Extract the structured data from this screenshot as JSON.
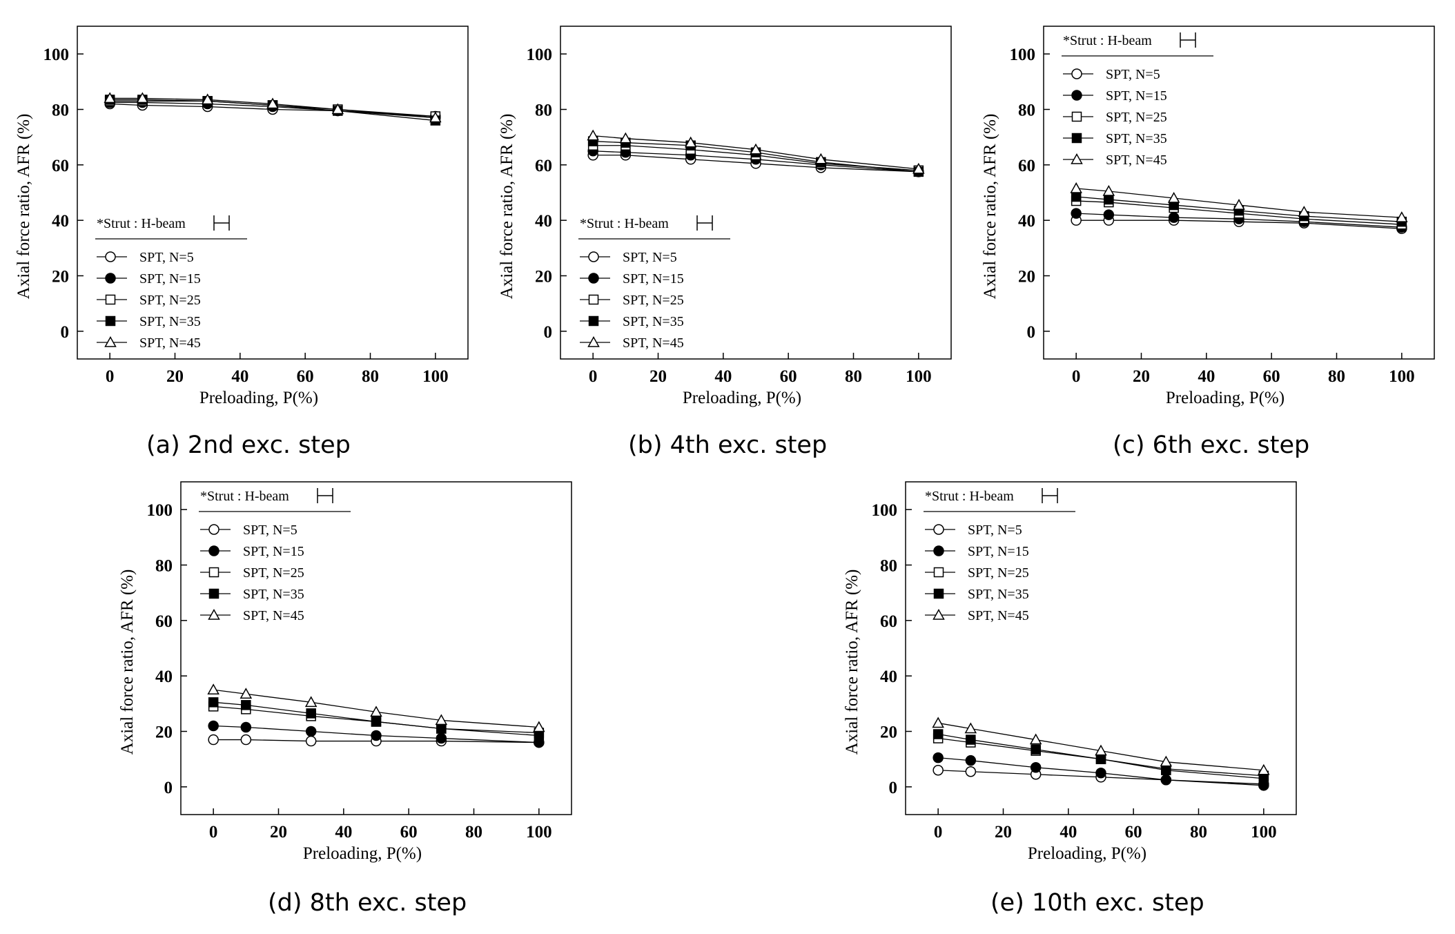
{
  "chart_data": [
    {
      "type": "line",
      "caption": "(a) 2nd exc. step",
      "xlabel": "Preloading, P(%)",
      "ylabel": "Axial force ratio, AFR  (%)",
      "xlim": [
        -10,
        110
      ],
      "ylim": [
        -10,
        110
      ],
      "xticks": [
        "0",
        "20",
        "40",
        "60",
        "80",
        "100"
      ],
      "yticks": [
        "0",
        "20",
        "40",
        "60",
        "80",
        "100"
      ],
      "legend_title": "*Strut : H-beam",
      "legend_position": "bottom-left",
      "grid": false,
      "x": [
        0,
        10,
        30,
        50,
        70,
        100
      ],
      "series": [
        {
          "name": "SPT, N=5",
          "marker": "circle-open",
          "values": [
            82,
            81.5,
            81,
            80,
            79.5,
            77.5
          ]
        },
        {
          "name": "SPT, N=15",
          "marker": "circle-filled",
          "values": [
            82.5,
            82.5,
            82,
            81,
            79.5,
            77
          ]
        },
        {
          "name": "SPT, N=25",
          "marker": "square-open",
          "values": [
            83,
            83,
            83,
            81.5,
            80,
            77.5
          ]
        },
        {
          "name": "SPT, N=35",
          "marker": "square-filled",
          "values": [
            83.5,
            83.5,
            83,
            81.5,
            79.5,
            76
          ]
        },
        {
          "name": "SPT, N=45",
          "marker": "triangle-open",
          "values": [
            84,
            84,
            83.5,
            82,
            80,
            77
          ]
        }
      ]
    },
    {
      "type": "line",
      "caption": "(b) 4th exc. step",
      "xlabel": "Preloading, P(%)",
      "ylabel": "Axial force ratio, AFR  (%)",
      "xlim": [
        -10,
        110
      ],
      "ylim": [
        -10,
        110
      ],
      "xticks": [
        "0",
        "20",
        "40",
        "60",
        "80",
        "100"
      ],
      "yticks": [
        "0",
        "20",
        "40",
        "60",
        "80",
        "100"
      ],
      "legend_title": "*Strut : H-beam",
      "legend_position": "bottom-left",
      "grid": false,
      "x": [
        0,
        10,
        30,
        50,
        70,
        100
      ],
      "series": [
        {
          "name": "SPT, N=5",
          "marker": "circle-open",
          "values": [
            63.5,
            63.5,
            62,
            60.5,
            59,
            57.5
          ]
        },
        {
          "name": "SPT, N=15",
          "marker": "circle-filled",
          "values": [
            65,
            64.5,
            63.5,
            62,
            60,
            57.5
          ]
        },
        {
          "name": "SPT, N=25",
          "marker": "square-open",
          "values": [
            67,
            67,
            65.5,
            63.5,
            60.5,
            58
          ]
        },
        {
          "name": "SPT, N=35",
          "marker": "square-filled",
          "values": [
            68.5,
            68,
            67,
            64.5,
            61,
            57.5
          ]
        },
        {
          "name": "SPT, N=45",
          "marker": "triangle-open",
          "values": [
            70.5,
            69.5,
            68,
            65.5,
            62,
            58.5
          ]
        }
      ]
    },
    {
      "type": "line",
      "caption": "(c) 6th exc. step",
      "xlabel": "Preloading, P(%)",
      "ylabel": "Axial force ratio, AFR  (%)",
      "xlim": [
        -10,
        110
      ],
      "ylim": [
        -10,
        110
      ],
      "xticks": [
        "0",
        "20",
        "40",
        "60",
        "80",
        "100"
      ],
      "yticks": [
        "0",
        "20",
        "40",
        "60",
        "80",
        "100"
      ],
      "legend_title": "*Strut : H-beam",
      "legend_position": "top-left",
      "grid": false,
      "x": [
        0,
        10,
        30,
        50,
        70,
        100
      ],
      "series": [
        {
          "name": "SPT, N=5",
          "marker": "circle-open",
          "values": [
            40,
            40,
            40,
            39.5,
            39,
            37
          ]
        },
        {
          "name": "SPT, N=15",
          "marker": "circle-filled",
          "values": [
            42.5,
            42,
            41,
            40.5,
            39.5,
            37.5
          ]
        },
        {
          "name": "SPT, N=25",
          "marker": "square-open",
          "values": [
            47,
            46.5,
            44.5,
            42.5,
            40.5,
            38.5
          ]
        },
        {
          "name": "SPT, N=35",
          "marker": "square-filled",
          "values": [
            48.5,
            47.5,
            45.5,
            43.5,
            41.5,
            39.5
          ]
        },
        {
          "name": "SPT, N=45",
          "marker": "triangle-open",
          "values": [
            51.5,
            50.5,
            48,
            45.5,
            43,
            41
          ]
        }
      ]
    },
    {
      "type": "line",
      "caption": "(d) 8th exc. step",
      "xlabel": "Preloading, P(%)",
      "ylabel": "Axial force ratio, AFR  (%)",
      "xlim": [
        -10,
        110
      ],
      "ylim": [
        -10,
        110
      ],
      "xticks": [
        "0",
        "20",
        "40",
        "60",
        "80",
        "100"
      ],
      "yticks": [
        "0",
        "20",
        "40",
        "60",
        "80",
        "100"
      ],
      "legend_title": "*Strut : H-beam",
      "legend_position": "top-left",
      "grid": false,
      "x": [
        0,
        10,
        30,
        50,
        70,
        100
      ],
      "series": [
        {
          "name": "SPT, N=5",
          "marker": "circle-open",
          "values": [
            17,
            17,
            16.5,
            16.5,
            16.5,
            16
          ]
        },
        {
          "name": "SPT, N=15",
          "marker": "circle-filled",
          "values": [
            22,
            21.5,
            20,
            18.5,
            17.5,
            16
          ]
        },
        {
          "name": "SPT, N=25",
          "marker": "square-open",
          "values": [
            29,
            28,
            25.5,
            23.5,
            21,
            19.5
          ]
        },
        {
          "name": "SPT, N=35",
          "marker": "square-filled",
          "values": [
            30.5,
            29.5,
            26.5,
            23.5,
            21,
            18.5
          ]
        },
        {
          "name": "SPT, N=45",
          "marker": "triangle-open",
          "values": [
            35,
            33.5,
            30.5,
            27,
            24,
            21.5
          ]
        }
      ]
    },
    {
      "type": "line",
      "caption": "(e) 10th exc. step",
      "xlabel": "Preloading, P(%)",
      "ylabel": "Axial force ratio, AFR  (%)",
      "xlim": [
        -10,
        110
      ],
      "ylim": [
        -10,
        110
      ],
      "xticks": [
        "0",
        "20",
        "40",
        "60",
        "80",
        "100"
      ],
      "yticks": [
        "0",
        "20",
        "40",
        "60",
        "80",
        "100"
      ],
      "legend_title": "*Strut : H-beam",
      "legend_position": "top-left",
      "grid": false,
      "x": [
        0,
        10,
        30,
        50,
        70,
        100
      ],
      "series": [
        {
          "name": "SPT, N=5",
          "marker": "circle-open",
          "values": [
            6,
            5.5,
            4.5,
            3.5,
            2.5,
            1
          ]
        },
        {
          "name": "SPT, N=15",
          "marker": "circle-filled",
          "values": [
            10.5,
            9.5,
            7,
            5,
            2.5,
            0.5
          ]
        },
        {
          "name": "SPT, N=25",
          "marker": "square-open",
          "values": [
            17.5,
            16,
            13,
            10,
            6.5,
            4
          ]
        },
        {
          "name": "SPT, N=35",
          "marker": "square-filled",
          "values": [
            19,
            17,
            13.5,
            10,
            6,
            3
          ]
        },
        {
          "name": "SPT, N=45",
          "marker": "triangle-open",
          "values": [
            23,
            21,
            17,
            13,
            9,
            6
          ]
        }
      ]
    }
  ]
}
